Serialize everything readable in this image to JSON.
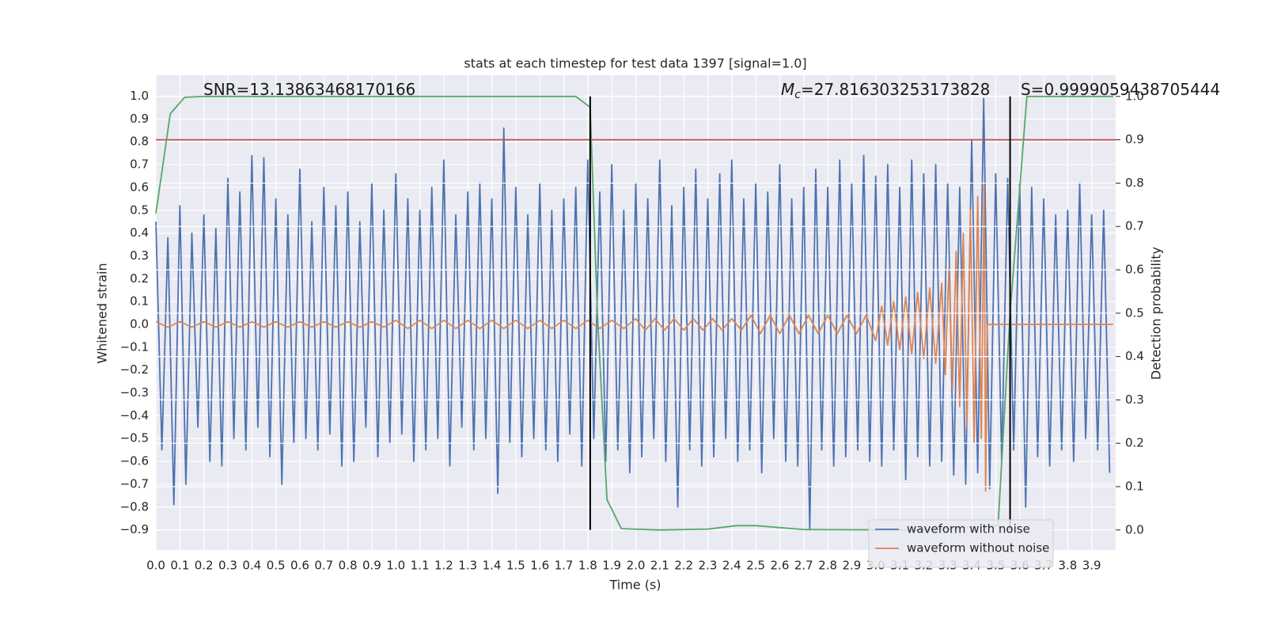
{
  "chart_data": {
    "type": "line",
    "title": "stats at each timestep for test data 1397 [signal=1.0]",
    "xlabel": "Time (s)",
    "ylabel": "Whitened strain",
    "y2label": "Detection probability",
    "xlim": [
      0,
      4.0
    ],
    "ylim": [
      -0.988,
      1.092
    ],
    "y2lim": [
      -0.046,
      1.049
    ],
    "grid": true,
    "legend": "lower right",
    "xticks": [
      {
        "value": 0,
        "label": "0.0"
      },
      0.1,
      0.2,
      0.3,
      0.4,
      0.5,
      0.6,
      0.7,
      0.8,
      0.9,
      {
        "value": 1,
        "label": "1.0"
      },
      1.1,
      1.2,
      1.3,
      1.4,
      1.5,
      1.6,
      1.7,
      1.8,
      1.9,
      {
        "value": 2,
        "label": "2.0"
      },
      2.1,
      2.2,
      2.3,
      2.4,
      2.5,
      2.6,
      2.7,
      2.8,
      2.9,
      {
        "value": 3,
        "label": "3.0"
      },
      3.1,
      3.2,
      3.3,
      3.4,
      3.5,
      3.6,
      3.7,
      3.8,
      3.9
    ],
    "yticks": [
      {
        "value": -0.9,
        "label": "−0.9"
      },
      {
        "value": -0.8,
        "label": "−0.8"
      },
      {
        "value": -0.7,
        "label": "−0.7"
      },
      {
        "value": -0.6,
        "label": "−0.6"
      },
      {
        "value": -0.5,
        "label": "−0.5"
      },
      {
        "value": -0.4,
        "label": "−0.4"
      },
      {
        "value": -0.3,
        "label": "−0.3"
      },
      {
        "value": -0.2,
        "label": "−0.2"
      },
      {
        "value": -0.1,
        "label": "−0.1"
      },
      {
        "value": 0,
        "label": "0.0"
      },
      0.1,
      0.2,
      0.3,
      0.4,
      0.5,
      0.6,
      0.7,
      0.8,
      0.9,
      {
        "value": 1,
        "label": "1.0"
      }
    ],
    "y2ticks": [
      {
        "value": 0,
        "label": "0.0"
      },
      0.1,
      0.2,
      0.3,
      0.4,
      0.5,
      0.6,
      0.7,
      0.8,
      0.9,
      {
        "value": 1,
        "label": "1.0"
      }
    ],
    "series": [
      {
        "name": "waveform with noise",
        "color": "#4c72b0",
        "x": [
          0,
          0.025,
          0.05,
          0.075,
          0.1,
          0.125,
          0.15,
          0.175,
          0.2,
          0.225,
          0.25,
          0.275,
          0.3,
          0.325,
          0.35,
          0.375,
          0.4,
          0.425,
          0.45,
          0.475,
          0.5,
          0.525,
          0.55,
          0.575,
          0.6,
          0.625,
          0.65,
          0.675,
          0.7,
          0.725,
          0.75,
          0.775,
          0.8,
          0.825,
          0.85,
          0.875,
          0.9,
          0.925,
          0.95,
          0.975,
          1,
          1.025,
          1.05,
          1.075,
          1.1,
          1.125,
          1.15,
          1.175,
          1.2,
          1.225,
          1.25,
          1.275,
          1.3,
          1.325,
          1.35,
          1.375,
          1.4,
          1.425,
          1.45,
          1.475,
          1.5,
          1.525,
          1.55,
          1.575,
          1.6,
          1.625,
          1.65,
          1.675,
          1.7,
          1.725,
          1.75,
          1.775,
          1.8,
          1.825,
          1.85,
          1.875,
          1.9,
          1.925,
          1.95,
          1.975,
          2,
          2.025,
          2.05,
          2.075,
          2.1,
          2.125,
          2.15,
          2.175,
          2.2,
          2.225,
          2.25,
          2.275,
          2.3,
          2.325,
          2.35,
          2.375,
          2.4,
          2.425,
          2.45,
          2.475,
          2.5,
          2.525,
          2.55,
          2.575,
          2.6,
          2.625,
          2.65,
          2.675,
          2.7,
          2.725,
          2.75,
          2.775,
          2.8,
          2.825,
          2.85,
          2.875,
          2.9,
          2.925,
          2.95,
          2.975,
          3,
          3.025,
          3.05,
          3.075,
          3.1,
          3.125,
          3.15,
          3.175,
          3.2,
          3.225,
          3.25,
          3.275,
          3.3,
          3.325,
          3.35,
          3.375,
          3.4,
          3.425,
          3.45,
          3.475,
          3.5,
          3.525,
          3.55,
          3.575,
          3.6,
          3.625,
          3.65,
          3.675,
          3.7,
          3.725,
          3.75,
          3.775,
          3.8,
          3.825,
          3.85,
          3.875,
          3.9,
          3.925,
          3.95,
          3.975
        ],
        "values": [
          0.45,
          -0.55,
          0.38,
          -0.79,
          0.52,
          -0.7,
          0.4,
          -0.45,
          0.48,
          -0.6,
          0.42,
          -0.62,
          0.64,
          -0.5,
          0.58,
          -0.55,
          0.74,
          -0.45,
          0.73,
          -0.58,
          0.55,
          -0.7,
          0.48,
          -0.52,
          0.68,
          -0.5,
          0.45,
          -0.55,
          0.6,
          -0.48,
          0.52,
          -0.62,
          0.58,
          -0.6,
          0.45,
          -0.45,
          0.62,
          -0.58,
          0.5,
          -0.52,
          0.66,
          -0.48,
          0.55,
          -0.6,
          0.5,
          -0.55,
          0.6,
          -0.5,
          0.72,
          -0.62,
          0.48,
          -0.45,
          0.58,
          -0.55,
          0.62,
          -0.5,
          0.55,
          -0.74,
          0.86,
          -0.52,
          0.6,
          -0.58,
          0.48,
          -0.5,
          0.62,
          -0.55,
          0.5,
          -0.6,
          0.55,
          -0.48,
          0.6,
          -0.62,
          0.72,
          -0.5,
          0.58,
          -0.6,
          0.7,
          -0.55,
          0.5,
          -0.65,
          0.62,
          -0.58,
          0.55,
          -0.5,
          0.72,
          -0.6,
          0.52,
          -0.8,
          0.6,
          -0.55,
          0.68,
          -0.62,
          0.55,
          -0.58,
          0.66,
          -0.5,
          0.72,
          -0.6,
          0.55,
          -0.55,
          0.62,
          -0.65,
          0.58,
          -0.5,
          0.7,
          -0.6,
          0.55,
          -0.62,
          0.6,
          -0.9,
          0.68,
          -0.55,
          0.6,
          -0.62,
          0.72,
          -0.58,
          0.62,
          -0.55,
          0.74,
          -0.6,
          0.65,
          -0.62,
          0.7,
          -0.55,
          0.6,
          -0.68,
          0.72,
          -0.58,
          0.66,
          -0.62,
          0.7,
          -0.6,
          0.62,
          -0.66,
          0.6,
          -0.7,
          0.81,
          -0.65,
          0.99,
          -0.72,
          0.66,
          -0.6,
          0.64,
          -0.55,
          0.62,
          -0.8,
          0.6,
          -0.58,
          0.55,
          -0.62,
          0.48,
          -0.55,
          0.5,
          -0.6,
          0.62,
          -0.5,
          0.48,
          -0.55,
          0.5,
          -0.65
        ]
      },
      {
        "name": "waveform without noise",
        "color": "#dd8452",
        "x": [
          0,
          0.05,
          0.1,
          0.15,
          0.2,
          0.25,
          0.3,
          0.35,
          0.4,
          0.45,
          0.5,
          0.55,
          0.6,
          0.65,
          0.7,
          0.75,
          0.8,
          0.85,
          0.9,
          0.95,
          1,
          1.05,
          1.1,
          1.15,
          1.2,
          1.25,
          1.3,
          1.35,
          1.4,
          1.45,
          1.5,
          1.55,
          1.6,
          1.65,
          1.7,
          1.75,
          1.8,
          1.85,
          1.9,
          1.95,
          2,
          2.04,
          2.08,
          2.12,
          2.16,
          2.2,
          2.24,
          2.28,
          2.32,
          2.36,
          2.4,
          2.44,
          2.48,
          2.52,
          2.56,
          2.6,
          2.64,
          2.68,
          2.72,
          2.76,
          2.8,
          2.84,
          2.88,
          2.92,
          2.96,
          3,
          3.025,
          3.05,
          3.075,
          3.1,
          3.125,
          3.15,
          3.175,
          3.2,
          3.225,
          3.25,
          3.275,
          3.29,
          3.305,
          3.32,
          3.335,
          3.35,
          3.365,
          3.38,
          3.395,
          3.41,
          3.425,
          3.44,
          3.452,
          3.458,
          3.465,
          3.99
        ],
        "values": [
          0.012,
          -0.012,
          0.012,
          -0.012,
          0.012,
          -0.012,
          0.012,
          -0.012,
          0.012,
          -0.012,
          0.012,
          -0.012,
          0.012,
          -0.012,
          0.012,
          -0.012,
          0.012,
          -0.012,
          0.012,
          -0.012,
          0.018,
          -0.018,
          0.018,
          -0.018,
          0.018,
          -0.018,
          0.018,
          -0.018,
          0.018,
          -0.018,
          0.018,
          -0.018,
          0.018,
          -0.018,
          0.018,
          -0.018,
          0.018,
          -0.018,
          0.018,
          -0.018,
          0.025,
          -0.025,
          0.025,
          -0.025,
          0.025,
          -0.025,
          0.025,
          -0.025,
          0.025,
          -0.025,
          0.025,
          -0.025,
          0.04,
          -0.04,
          0.04,
          -0.04,
          0.04,
          -0.04,
          0.04,
          -0.04,
          0.04,
          -0.04,
          0.04,
          -0.04,
          0.04,
          -0.07,
          0.08,
          -0.09,
          0.1,
          -0.11,
          0.12,
          -0.13,
          0.14,
          -0.15,
          0.16,
          -0.17,
          0.18,
          -0.22,
          0.25,
          -0.28,
          0.32,
          -0.36,
          0.4,
          -0.45,
          0.5,
          -0.52,
          0.56,
          -0.5,
          0.61,
          -0.73,
          0,
          0
        ]
      },
      {
        "color": "#55a868",
        "axis": "y2",
        "x": [
          0,
          0.06,
          0.12,
          0.2,
          1.75,
          1.81,
          1.84,
          1.88,
          1.94,
          2.1,
          2.3,
          2.42,
          2.5,
          2.7,
          3.2,
          3.51,
          3.56,
          3.63,
          3.99
        ],
        "values": [
          0.73,
          0.96,
          0.998,
          1.0,
          1.0,
          0.975,
          0.5,
          0.07,
          0.003,
          0.0,
          0.002,
          0.01,
          0.01,
          0.001,
          0.0,
          0.01,
          0.5,
          1.0,
          1.0
        ]
      }
    ],
    "hlines": [
      {
        "value": 0.9,
        "axis": "y2",
        "color": "#c44e52"
      }
    ],
    "vlines": [
      {
        "value": 1.81,
        "color": "#000000"
      },
      {
        "value": 3.56,
        "color": "#000000"
      }
    ],
    "annotations": [
      {
        "text": "SNR=13.13863468170166"
      },
      {
        "symbol": "M",
        "subscript": "c",
        "text": "=27.816303253173828"
      },
      {
        "text": "S=0.9999059438705444"
      }
    ]
  }
}
